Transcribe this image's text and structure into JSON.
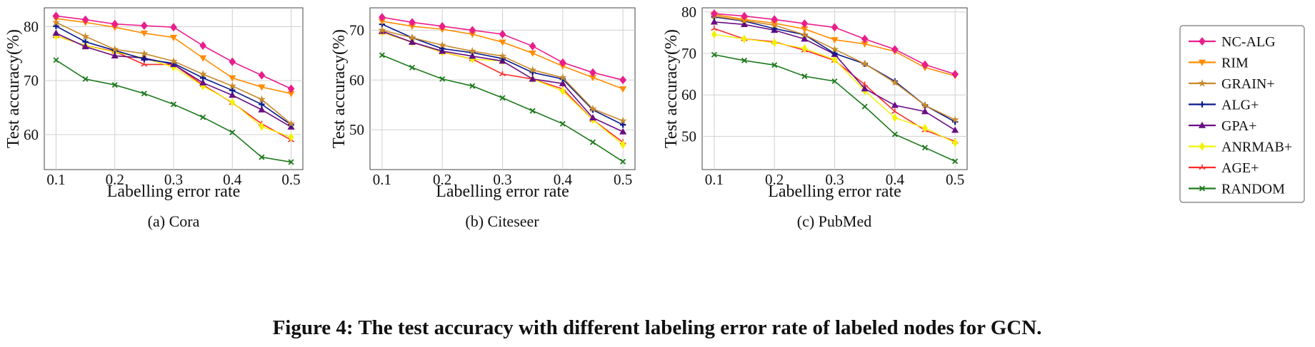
{
  "figure_caption": "Figure 4: The test accuracy with different labeling error rate of labeled nodes for GCN.",
  "legend": {
    "placement": "right",
    "entries": [
      {
        "name": "NC-ALG",
        "color": "#e91e8c",
        "marker": "diamond"
      },
      {
        "name": "RIM",
        "color": "#ff8c00",
        "marker": "triangle-down"
      },
      {
        "name": "GRAIN+",
        "color": "#c98a2c",
        "marker": "star"
      },
      {
        "name": "ALG+",
        "color": "#0a1a8a",
        "marker": "plus"
      },
      {
        "name": "GPA+",
        "color": "#6a0d83",
        "marker": "triangle-up"
      },
      {
        "name": "ANRMAB+",
        "color": "#f2f200",
        "marker": "diamond-thin"
      },
      {
        "name": "AGE+",
        "color": "#ff2a2a",
        "marker": "tri-up"
      },
      {
        "name": "RANDOM",
        "color": "#1e7a1e",
        "marker": "x"
      }
    ]
  },
  "chart_data": [
    {
      "type": "line",
      "caption": "(a)  Cora",
      "xlabel": "Labelling error rate",
      "ylabel": "Test accuracy(%)",
      "x": [
        0.1,
        0.15,
        0.2,
        0.25,
        0.3,
        0.35,
        0.4,
        0.45,
        0.5
      ],
      "xticks": [
        "0.1",
        "0.2",
        "0.3",
        "0.4",
        "0.5"
      ],
      "yticks": [
        "60",
        "70",
        "80"
      ],
      "xlim": [
        0.08,
        0.52
      ],
      "ylim": [
        53.5,
        83.5
      ],
      "grid": true,
      "series": [
        {
          "name": "NC-ALG",
          "values": [
            82.0,
            81.3,
            80.5,
            80.2,
            79.9,
            76.5,
            73.5,
            71.0,
            68.5
          ]
        },
        {
          "name": "RIM",
          "values": [
            81.5,
            80.8,
            79.9,
            78.8,
            78.0,
            74.2,
            70.5,
            68.8,
            67.6
          ]
        },
        {
          "name": "GRAIN+",
          "values": [
            80.8,
            78.2,
            75.8,
            75.0,
            73.6,
            71.2,
            69.0,
            66.5,
            62.0
          ]
        },
        {
          "name": "ALG+",
          "values": [
            80.1,
            77.2,
            75.6,
            74.0,
            73.2,
            70.5,
            68.2,
            65.6,
            61.8
          ]
        },
        {
          "name": "GPA+",
          "values": [
            78.8,
            76.3,
            74.6,
            74.2,
            73.0,
            69.6,
            67.3,
            64.6,
            61.4
          ]
        },
        {
          "name": "ANRMAB+",
          "values": [
            78.3,
            76.5,
            75.3,
            74.2,
            72.5,
            69.0,
            66.0,
            61.5,
            59.5
          ]
        },
        {
          "name": "AGE+",
          "values": [
            78.3,
            76.5,
            75.4,
            73.0,
            73.0,
            69.2,
            65.9,
            62.0,
            59.0
          ]
        },
        {
          "name": "RANDOM",
          "values": [
            73.8,
            70.3,
            69.2,
            67.6,
            65.6,
            63.2,
            60.4,
            55.8,
            54.9
          ]
        }
      ]
    },
    {
      "type": "line",
      "caption": "(b)  Citeseer",
      "xlabel": "Labelling error rate",
      "ylabel": "Test accuracy(%)",
      "x": [
        0.1,
        0.15,
        0.2,
        0.25,
        0.3,
        0.35,
        0.4,
        0.45,
        0.5
      ],
      "xticks": [
        "0.1",
        "0.2",
        "0.3",
        "0.4",
        "0.5"
      ],
      "yticks": [
        "50",
        "60",
        "70"
      ],
      "xlim": [
        0.08,
        0.52
      ],
      "ylim": [
        42.0,
        74.5
      ],
      "grid": true,
      "series": [
        {
          "name": "NC-ALG",
          "values": [
            72.6,
            71.6,
            70.8,
            70.0,
            69.2,
            66.8,
            63.5,
            61.5,
            60.0
          ]
        },
        {
          "name": "RIM",
          "values": [
            71.8,
            70.8,
            70.2,
            69.2,
            67.6,
            65.4,
            62.8,
            60.5,
            58.2
          ]
        },
        {
          "name": "GRAIN+",
          "values": [
            70.0,
            68.5,
            67.0,
            65.8,
            64.8,
            62.0,
            60.5,
            54.2,
            51.8
          ]
        },
        {
          "name": "ALG+",
          "values": [
            71.2,
            68.5,
            66.3,
            65.5,
            64.3,
            61.5,
            60.2,
            54.0,
            51.0
          ]
        },
        {
          "name": "GPA+",
          "values": [
            69.8,
            67.6,
            65.8,
            64.8,
            63.8,
            60.2,
            59.3,
            52.4,
            49.6
          ]
        },
        {
          "name": "ANRMAB+",
          "values": [
            69.6,
            67.6,
            65.6,
            64.2,
            63.8,
            60.2,
            57.8,
            52.0,
            47.0
          ]
        },
        {
          "name": "AGE+",
          "values": [
            69.6,
            67.6,
            65.6,
            64.2,
            61.2,
            60.2,
            58.2,
            52.0,
            47.5
          ]
        },
        {
          "name": "RANDOM",
          "values": [
            65.0,
            62.5,
            60.2,
            58.8,
            56.4,
            53.8,
            51.2,
            47.5,
            43.6
          ]
        }
      ]
    },
    {
      "type": "line",
      "caption": "(c)  PubMed",
      "xlabel": "Labelling error rate",
      "ylabel": "Test accuracy(%)",
      "x": [
        0.1,
        0.15,
        0.2,
        0.25,
        0.3,
        0.35,
        0.4,
        0.45,
        0.5
      ],
      "xticks": [
        "0.1",
        "0.2",
        "0.3",
        "0.4",
        "0.5"
      ],
      "yticks": [
        "50",
        "60",
        "70",
        "80"
      ],
      "xlim": [
        0.08,
        0.52
      ],
      "ylim": [
        42.0,
        81.0
      ],
      "grid": true,
      "series": [
        {
          "name": "NC-ALG",
          "values": [
            79.6,
            79.0,
            78.2,
            77.2,
            76.3,
            73.5,
            71.0,
            67.3,
            65.0
          ]
        },
        {
          "name": "RIM",
          "values": [
            79.4,
            78.2,
            77.3,
            75.9,
            73.3,
            72.3,
            70.5,
            66.6,
            64.6
          ]
        },
        {
          "name": "GRAIN+",
          "values": [
            79.0,
            77.9,
            76.8,
            74.5,
            71.0,
            67.5,
            63.0,
            57.5,
            54.0
          ]
        },
        {
          "name": "ALG+",
          "values": [
            78.8,
            77.8,
            76.0,
            74.5,
            70.0,
            67.5,
            63.3,
            57.5,
            53.5
          ]
        },
        {
          "name": "GPA+",
          "values": [
            77.6,
            77.0,
            75.6,
            73.5,
            69.8,
            61.5,
            57.5,
            56.0,
            51.5
          ]
        },
        {
          "name": "ANRMAB+",
          "values": [
            74.6,
            73.5,
            72.6,
            71.2,
            68.5,
            61.0,
            54.5,
            52.0,
            48.5
          ]
        },
        {
          "name": "AGE+",
          "values": [
            76.0,
            73.5,
            72.8,
            70.8,
            68.3,
            62.5,
            56.0,
            51.5,
            48.8
          ]
        },
        {
          "name": "RANDOM",
          "values": [
            69.7,
            68.3,
            67.2,
            64.5,
            63.3,
            57.2,
            50.5,
            47.3,
            44.0
          ]
        }
      ]
    }
  ]
}
